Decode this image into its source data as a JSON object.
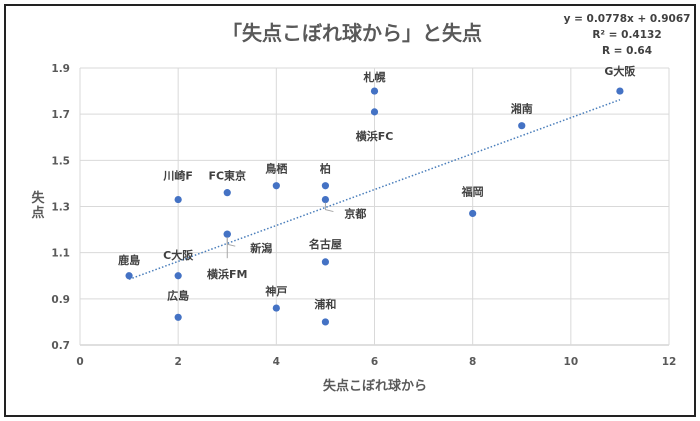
{
  "chart_data": {
    "type": "scatter",
    "title": "「失点こぼれ球から」と失点",
    "xlabel": "失点こぼれ球から",
    "ylabel": "失点",
    "xlim": [
      0,
      12
    ],
    "ylim": [
      0.7,
      1.9
    ],
    "xticks": [
      0,
      2,
      4,
      6,
      8,
      10,
      12
    ],
    "yticks": [
      0.7,
      0.9,
      1.1,
      1.3,
      1.5,
      1.7,
      1.9
    ],
    "xtick_labels": [
      "0",
      "2",
      "4",
      "6",
      "8",
      "10",
      "12"
    ],
    "ytick_labels": [
      "0.7",
      "0.9",
      "1.1",
      "1.3",
      "1.5",
      "1.7",
      "1.9"
    ],
    "grid": true,
    "point_color": "#4472c4",
    "trend_color": "#4a7ebb",
    "points": [
      {
        "label": "鹿島",
        "x": 1,
        "y": 1.0
      },
      {
        "label": "C大阪",
        "x": 2,
        "y": 1.0
      },
      {
        "label": "広島",
        "x": 2,
        "y": 0.82
      },
      {
        "label": "川崎F",
        "x": 2,
        "y": 1.33
      },
      {
        "label": "FC東京",
        "x": 3,
        "y": 1.36
      },
      {
        "label": "新潟",
        "x": 3,
        "y": 1.18
      },
      {
        "label": "横浜FM",
        "x": 3,
        "y": 1.18
      },
      {
        "label": "鳥栖",
        "x": 4,
        "y": 1.39
      },
      {
        "label": "神戸",
        "x": 4,
        "y": 0.86
      },
      {
        "label": "柏",
        "x": 5,
        "y": 1.39
      },
      {
        "label": "京都",
        "x": 5,
        "y": 1.33
      },
      {
        "label": "名古屋",
        "x": 5,
        "y": 1.06
      },
      {
        "label": "浦和",
        "x": 5,
        "y": 0.8
      },
      {
        "label": "札幌",
        "x": 6,
        "y": 1.8
      },
      {
        "label": "横浜FC",
        "x": 6,
        "y": 1.71
      },
      {
        "label": "福岡",
        "x": 8,
        "y": 1.27
      },
      {
        "label": "湘南",
        "x": 9,
        "y": 1.65
      },
      {
        "label": "G大阪",
        "x": 11,
        "y": 1.8
      }
    ],
    "trendline": {
      "slope": 0.0778,
      "intercept": 0.9067,
      "x_range": [
        1,
        11
      ]
    },
    "annotations": [
      "y = 0.0778x + 0.9067",
      "R² = 0.4132",
      "R = 0.64"
    ]
  }
}
